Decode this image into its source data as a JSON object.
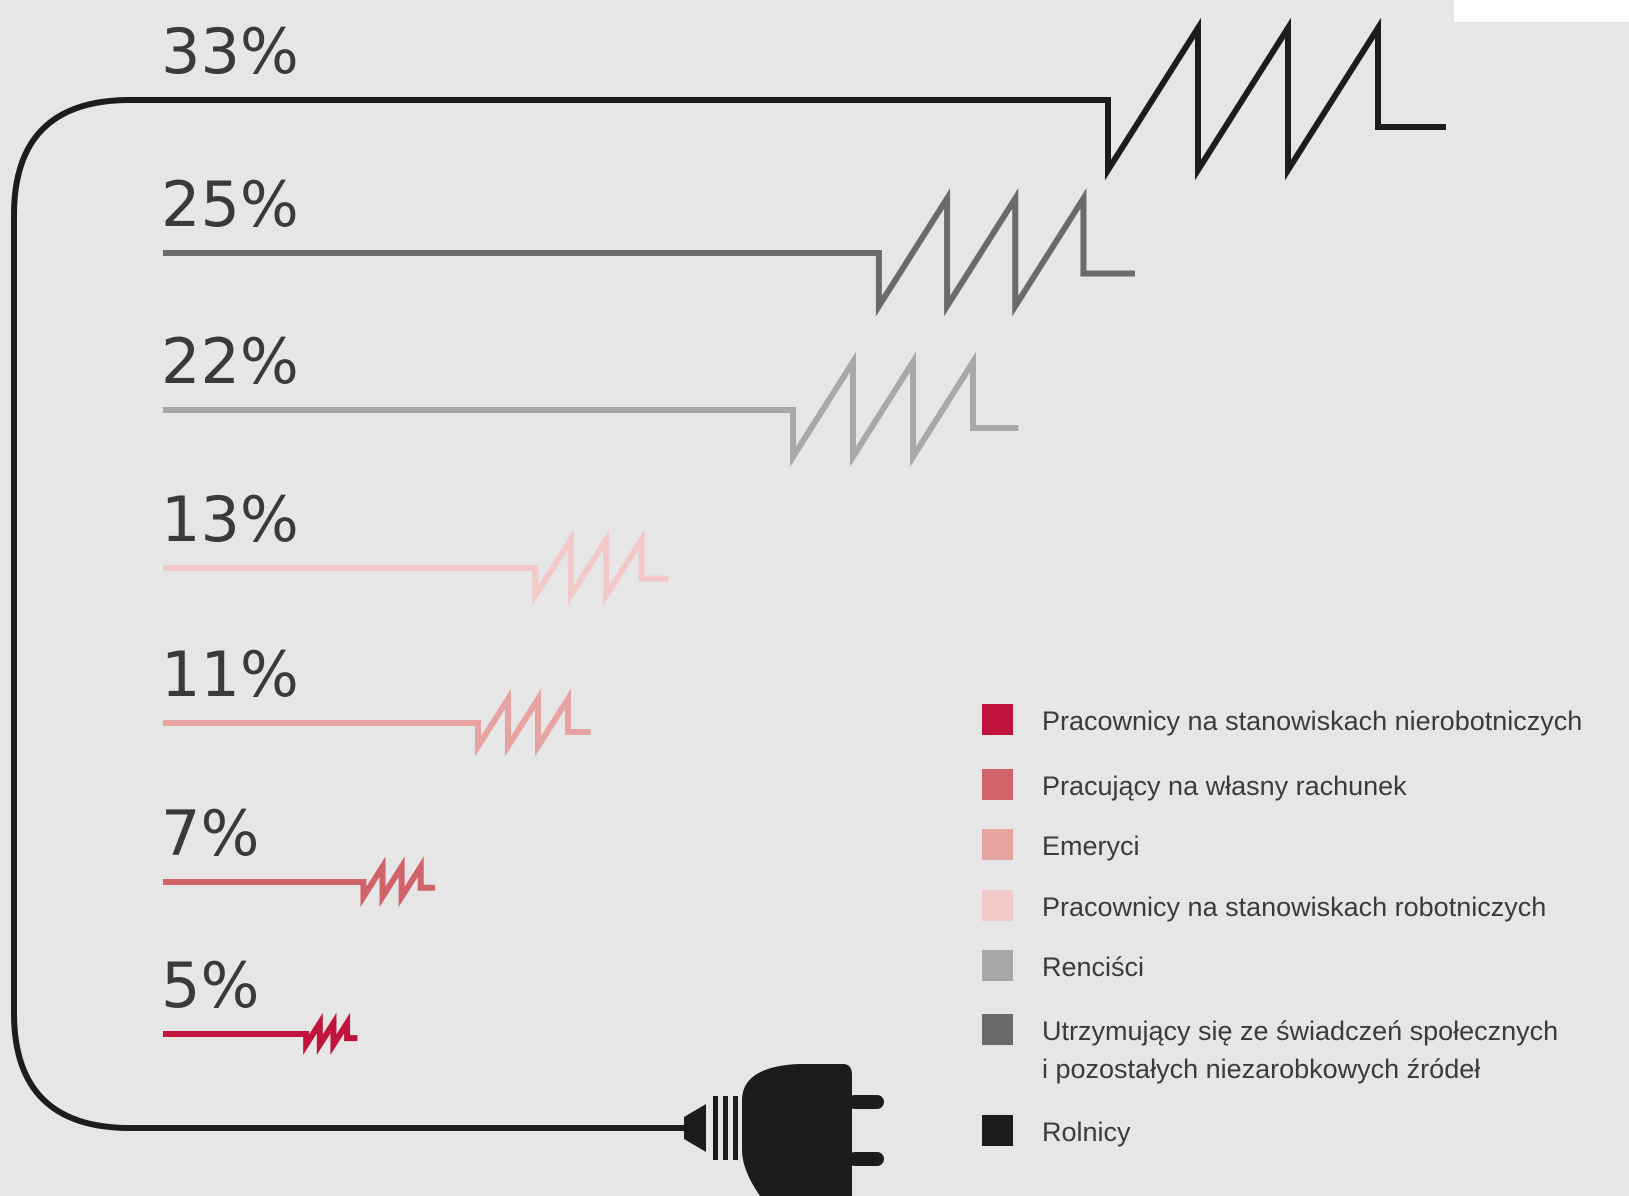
{
  "chart_data": {
    "type": "bar",
    "categories": [
      "Rolnicy",
      "Utrzymujący się ze świadczeń społecznych i pozostałych niezarobkowych źródeł",
      "Renciści",
      "Pracownicy na stanowiskach robotniczych",
      "Emeryci",
      "Pracujący na własny rachunek",
      "Pracownicy na stanowiskach nierobotniczych"
    ],
    "values": [
      33,
      25,
      22,
      13,
      11,
      7,
      5
    ],
    "value_labels": [
      "33%",
      "25%",
      "22%",
      "13%",
      "11%",
      "7%",
      "5%"
    ],
    "series_colors": [
      "#1c1b1d",
      "#6a6a6d",
      "#a8a8aa",
      "#f2c9c6",
      "#e6a3a2",
      "#d0636a",
      "#c0143c"
    ],
    "legend": [
      {
        "lines": [
          "Pracownicy na stanowiskach nierobotniczych"
        ],
        "color": "#c0143c"
      },
      {
        "lines": [
          "Pracujący na własny rachunek"
        ],
        "color": "#d0636a"
      },
      {
        "lines": [
          "Emeryci"
        ],
        "color": "#e6a3a2"
      },
      {
        "lines": [
          "Pracownicy na stanowiskach robotniczych"
        ],
        "color": "#f2c9c6"
      },
      {
        "lines": [
          "Renciści"
        ],
        "color": "#a8a8aa"
      },
      {
        "lines": [
          "Utrzymujący się ze  świadczeń społecznych",
          "i pozostałych niezarobkowych źródeł"
        ],
        "color": "#6a6a6d"
      },
      {
        "lines": [
          "Rolnicy"
        ],
        "color": "#1c1b1d"
      }
    ],
    "legend_position": "bottom-right",
    "icons": [
      "power-plug-icon",
      "power-cord-icon"
    ],
    "plug_color": "#1c1b1d"
  }
}
